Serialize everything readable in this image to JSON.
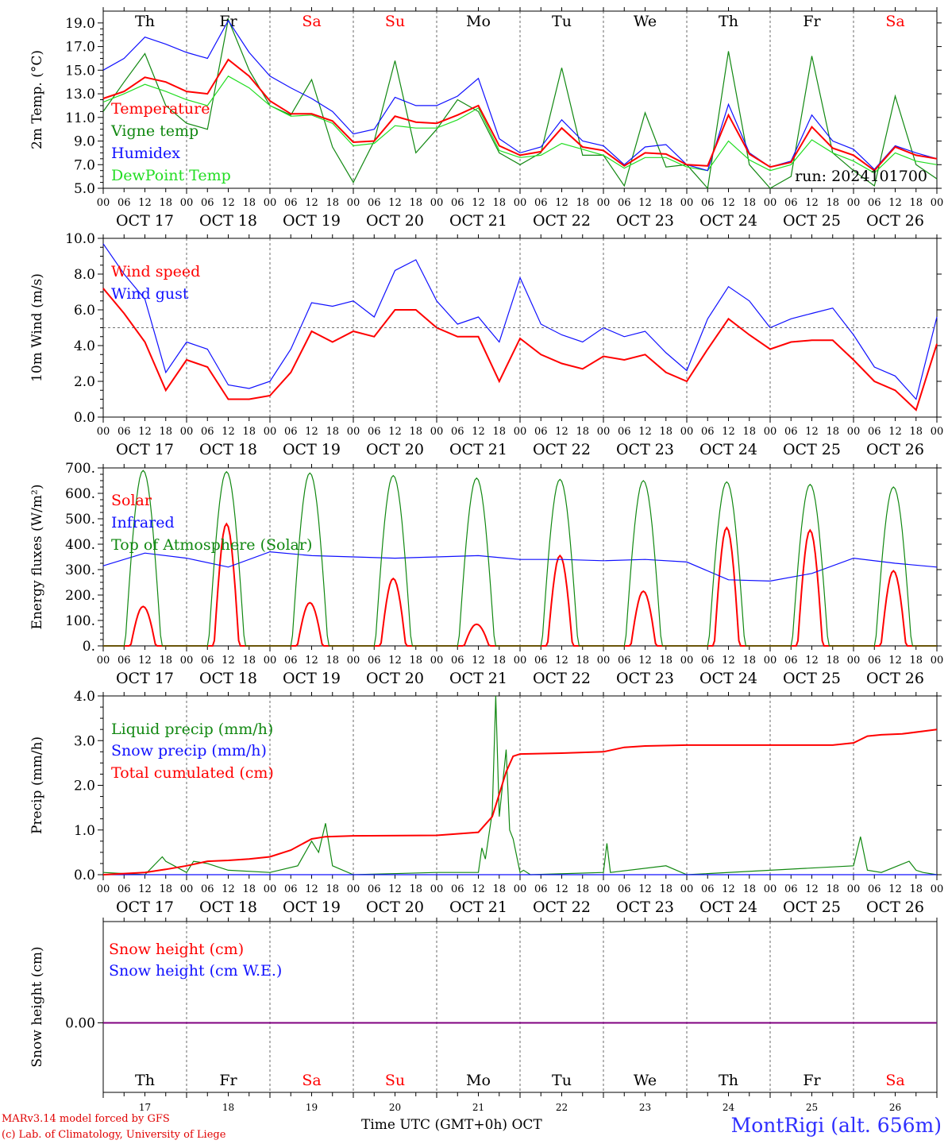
{
  "footer": {
    "model_line": "MARv3.14 model forced by GFS",
    "credit_line": "(c) Lab. of Climatology, University of Liege",
    "x_title": "Time UTC (GMT+0h) OCT",
    "station": "MontRigi (alt. 656m)"
  },
  "colors": {
    "red": "#ff0000",
    "green": "#118811",
    "blue": "#1010ff",
    "lightgreen": "#22dd22",
    "purple": "#800080",
    "grid": "#444444"
  },
  "days": {
    "weekday_labels": [
      "Th",
      "Fr",
      "Sa",
      "Su",
      "Mo",
      "Tu",
      "We",
      "Th",
      "Fr",
      "Sa"
    ],
    "weekend_flags": [
      false,
      false,
      true,
      true,
      false,
      false,
      false,
      false,
      false,
      true
    ],
    "date_labels": [
      "OCT 17",
      "OCT 18",
      "OCT 19",
      "OCT 20",
      "OCT 21",
      "OCT 22",
      "OCT 23",
      "OCT 24",
      "OCT 25",
      "OCT 26"
    ],
    "day_numbers": [
      "17",
      "18",
      "19",
      "20",
      "21",
      "22",
      "23",
      "24",
      "25",
      "26"
    ],
    "hour_labels": [
      "00",
      "06",
      "12",
      "18"
    ],
    "final_hour_label": "00"
  },
  "chart_data": [
    {
      "type": "line",
      "ylabel": "2m Temp. (°C)",
      "ylim": [
        5,
        20
      ],
      "yticks": [
        "5.0",
        "7.0",
        "9.0",
        "11.0",
        "13.0",
        "15.0",
        "17.0",
        "19.0"
      ],
      "annotation": "run: 2024101700",
      "x_unit": "hours from OCT 17 00 UTC",
      "series": [
        {
          "name": "Temperature",
          "color": "red",
          "x": [
            0,
            6,
            12,
            18,
            24,
            30,
            36,
            42,
            48,
            54,
            60,
            66,
            72,
            78,
            84,
            90,
            96,
            102,
            108,
            114,
            120,
            126,
            132,
            138,
            144,
            150,
            156,
            162,
            168,
            174,
            180,
            186,
            192,
            198,
            204,
            210,
            216,
            222,
            228,
            234,
            240
          ],
          "values": [
            12.6,
            13.2,
            14.4,
            14.0,
            13.2,
            13.0,
            15.9,
            14.5,
            12.4,
            11.3,
            11.3,
            10.7,
            8.9,
            9.0,
            11.1,
            10.6,
            10.5,
            11.2,
            12.0,
            8.6,
            7.8,
            8.1,
            10.1,
            8.5,
            8.2,
            6.9,
            8.0,
            7.9,
            7.0,
            6.9,
            11.2,
            7.9,
            6.8,
            7.2,
            10.2,
            8.4,
            7.8,
            6.5,
            8.5,
            7.8,
            7.5
          ]
        },
        {
          "name": "Vigne temp",
          "color": "green",
          "x": [
            0,
            6,
            12,
            18,
            24,
            30,
            36,
            42,
            48,
            54,
            60,
            66,
            72,
            78,
            84,
            90,
            96,
            102,
            108,
            114,
            120,
            126,
            132,
            138,
            144,
            150,
            156,
            162,
            168,
            174,
            180,
            186,
            192,
            198,
            204,
            210,
            216,
            222,
            228,
            234,
            240
          ],
          "values": [
            11.5,
            14.0,
            16.4,
            12.0,
            10.5,
            10.0,
            19.3,
            15.0,
            12.0,
            11.2,
            14.2,
            8.5,
            5.5,
            9.0,
            15.8,
            8.0,
            10.0,
            12.5,
            11.5,
            8.0,
            7.0,
            8.0,
            15.2,
            7.8,
            7.8,
            5.2,
            11.4,
            6.8,
            7.0,
            5.0,
            16.6,
            7.0,
            5.0,
            6.0,
            16.2,
            8.0,
            6.5,
            5.2,
            12.8,
            7.0,
            5.8
          ]
        },
        {
          "name": "Humidex",
          "color": "blue",
          "x": [
            0,
            6,
            12,
            18,
            24,
            30,
            36,
            42,
            48,
            54,
            60,
            66,
            72,
            78,
            84,
            90,
            96,
            102,
            108,
            114,
            120,
            126,
            132,
            138,
            144,
            150,
            156,
            162,
            168,
            174,
            180,
            186,
            192,
            198,
            204,
            210,
            216,
            222,
            228,
            234,
            240
          ],
          "values": [
            15.0,
            16.0,
            17.8,
            17.2,
            16.5,
            16.0,
            19.2,
            16.5,
            14.5,
            13.5,
            12.6,
            11.5,
            9.6,
            10.0,
            12.7,
            12.0,
            12.0,
            12.8,
            14.3,
            9.2,
            8.0,
            8.5,
            10.8,
            9.0,
            8.6,
            7.0,
            8.5,
            8.7,
            7.0,
            6.5,
            12.1,
            8.0,
            6.8,
            7.3,
            11.2,
            9.0,
            8.3,
            6.6,
            8.6,
            8.0,
            7.5
          ]
        },
        {
          "name": "DewPoint Temp",
          "color": "lightgreen",
          "x": [
            0,
            6,
            12,
            18,
            24,
            30,
            36,
            42,
            48,
            54,
            60,
            66,
            72,
            78,
            84,
            90,
            96,
            102,
            108,
            114,
            120,
            126,
            132,
            138,
            144,
            150,
            156,
            162,
            168,
            174,
            180,
            186,
            192,
            198,
            204,
            210,
            216,
            222,
            228,
            234,
            240
          ],
          "values": [
            12.3,
            13.0,
            13.8,
            13.2,
            12.5,
            12.0,
            14.5,
            13.5,
            12.0,
            11.1,
            11.2,
            10.5,
            8.6,
            8.8,
            10.3,
            10.1,
            10.1,
            10.8,
            11.8,
            8.2,
            7.6,
            7.8,
            8.8,
            8.3,
            7.8,
            6.7,
            7.6,
            7.6,
            6.8,
            6.5,
            9.0,
            7.4,
            6.5,
            7.0,
            9.1,
            8.0,
            7.3,
            6.3,
            8.0,
            7.3,
            7.0
          ]
        }
      ]
    },
    {
      "type": "line",
      "ylabel": "10m Wind (m/s)",
      "ylim": [
        0,
        10
      ],
      "yticks": [
        "0.0",
        "2.0",
        "4.0",
        "6.0",
        "8.0",
        "10.0"
      ],
      "reference_line": 5,
      "x_unit": "hours from OCT 17 00 UTC",
      "series": [
        {
          "name": "Wind speed",
          "color": "red",
          "x": [
            0,
            6,
            12,
            18,
            24,
            30,
            36,
            42,
            48,
            54,
            60,
            66,
            72,
            78,
            84,
            90,
            96,
            102,
            108,
            114,
            120,
            126,
            132,
            138,
            144,
            150,
            156,
            162,
            168,
            174,
            180,
            186,
            192,
            198,
            204,
            210,
            216,
            222,
            228,
            234,
            240
          ],
          "values": [
            7.2,
            5.8,
            4.2,
            1.5,
            3.2,
            2.8,
            1.0,
            1.0,
            1.2,
            2.5,
            4.8,
            4.2,
            4.8,
            4.5,
            6.0,
            6.0,
            5.0,
            4.5,
            4.5,
            2.0,
            4.4,
            3.5,
            3.0,
            2.7,
            3.4,
            3.2,
            3.5,
            2.5,
            2.0,
            3.8,
            5.5,
            4.6,
            3.8,
            4.2,
            4.3,
            4.3,
            3.2,
            2.0,
            1.5,
            0.4,
            4.1
          ]
        },
        {
          "name": "Wind gust",
          "color": "blue",
          "x": [
            0,
            6,
            12,
            18,
            24,
            30,
            36,
            42,
            48,
            54,
            60,
            66,
            72,
            78,
            84,
            90,
            96,
            102,
            108,
            114,
            120,
            126,
            132,
            138,
            144,
            150,
            156,
            162,
            168,
            174,
            180,
            186,
            192,
            198,
            204,
            210,
            216,
            222,
            228,
            234,
            240
          ],
          "values": [
            9.7,
            8.0,
            6.6,
            2.5,
            4.2,
            3.8,
            1.8,
            1.6,
            2.0,
            3.8,
            6.4,
            6.2,
            6.5,
            5.6,
            8.2,
            8.8,
            6.5,
            5.2,
            5.6,
            4.2,
            7.8,
            5.2,
            4.6,
            4.2,
            5.0,
            4.5,
            4.8,
            3.6,
            2.6,
            5.5,
            7.3,
            6.5,
            5.0,
            5.5,
            5.8,
            6.1,
            4.6,
            2.8,
            2.3,
            1.0,
            5.6
          ]
        }
      ]
    },
    {
      "type": "line",
      "ylabel": "Energy fluxes (W/m²)",
      "ylim": [
        0,
        700
      ],
      "yticks": [
        "0.",
        "100.",
        "200.",
        "300.",
        "400.",
        "500.",
        "600.",
        "700."
      ],
      "x_unit": "hours from OCT 17 00 UTC",
      "series": [
        {
          "name": "Solar",
          "color": "red",
          "peaks": [
            155,
            480,
            170,
            265,
            85,
            355,
            215,
            465,
            455,
            295
          ]
        },
        {
          "name": "Infrared",
          "color": "blue",
          "x": [
            0,
            12,
            24,
            36,
            48,
            60,
            72,
            84,
            96,
            108,
            120,
            132,
            144,
            156,
            168,
            180,
            192,
            204,
            216,
            228,
            240
          ],
          "values": [
            315,
            365,
            345,
            310,
            370,
            355,
            350,
            345,
            350,
            355,
            340,
            340,
            335,
            340,
            330,
            260,
            255,
            285,
            345,
            325,
            310
          ]
        },
        {
          "name": "Top of Atmosphere (Solar)",
          "color": "green",
          "peaks": [
            690,
            685,
            680,
            670,
            660,
            655,
            650,
            645,
            635,
            625
          ]
        }
      ]
    },
    {
      "type": "line",
      "ylabel": "Precip (mm/h)",
      "ylim": [
        0,
        4
      ],
      "yticks": [
        "0.0",
        "1.0",
        "2.0",
        "3.0",
        "4.0"
      ],
      "x_unit": "hours from OCT 17 00 UTC",
      "series": [
        {
          "name": "Liquid precip (mm/h)",
          "color": "green",
          "x": [
            0,
            12,
            17,
            18,
            24,
            26,
            30,
            36,
            48,
            56,
            60,
            62,
            64,
            66,
            72,
            96,
            108,
            109,
            110,
            112,
            113,
            114,
            116,
            117,
            118,
            120,
            121,
            123,
            144,
            145,
            146,
            162,
            168,
            216,
            218,
            220,
            224,
            232,
            234,
            236,
            240
          ],
          "values": [
            0.05,
            0.0,
            0.4,
            0.3,
            0.05,
            0.3,
            0.25,
            0.1,
            0.05,
            0.2,
            0.75,
            0.5,
            1.15,
            0.2,
            0.0,
            0.05,
            0.05,
            0.6,
            0.35,
            1.4,
            4.0,
            1.3,
            2.8,
            1.0,
            0.8,
            0.05,
            0.1,
            0.0,
            0.05,
            0.7,
            0.05,
            0.2,
            0.0,
            0.2,
            0.85,
            0.1,
            0.05,
            0.3,
            0.1,
            0.05,
            0.0
          ]
        },
        {
          "name": "Snow precip (mm/h)",
          "color": "blue",
          "x": [
            0,
            240
          ],
          "values": [
            0,
            0
          ]
        },
        {
          "name": "Total cumulated (cm)",
          "color": "red",
          "x": [
            0,
            12,
            18,
            24,
            30,
            36,
            42,
            48,
            54,
            60,
            64,
            72,
            96,
            108,
            112,
            116,
            118,
            120,
            132,
            144,
            150,
            156,
            168,
            180,
            192,
            210,
            216,
            220,
            224,
            230,
            240
          ],
          "values": [
            0.0,
            0.05,
            0.12,
            0.2,
            0.3,
            0.32,
            0.35,
            0.4,
            0.55,
            0.8,
            0.85,
            0.87,
            0.88,
            0.95,
            1.3,
            2.3,
            2.65,
            2.7,
            2.72,
            2.75,
            2.85,
            2.88,
            2.9,
            2.9,
            2.9,
            2.9,
            2.95,
            3.1,
            3.13,
            3.15,
            3.25
          ]
        }
      ]
    },
    {
      "type": "line",
      "ylabel": "Snow height (cm)",
      "yticks": [
        "0.00"
      ],
      "x_unit": "hours from OCT 17 00 UTC",
      "series": [
        {
          "name": "Snow height (cm)",
          "color": "red",
          "x": [
            0,
            240
          ],
          "values": [
            0,
            0
          ]
        },
        {
          "name": "Snow height (cm W.E.)",
          "color": "blue",
          "x": [
            0,
            240
          ],
          "values": [
            0,
            0
          ]
        }
      ]
    }
  ]
}
